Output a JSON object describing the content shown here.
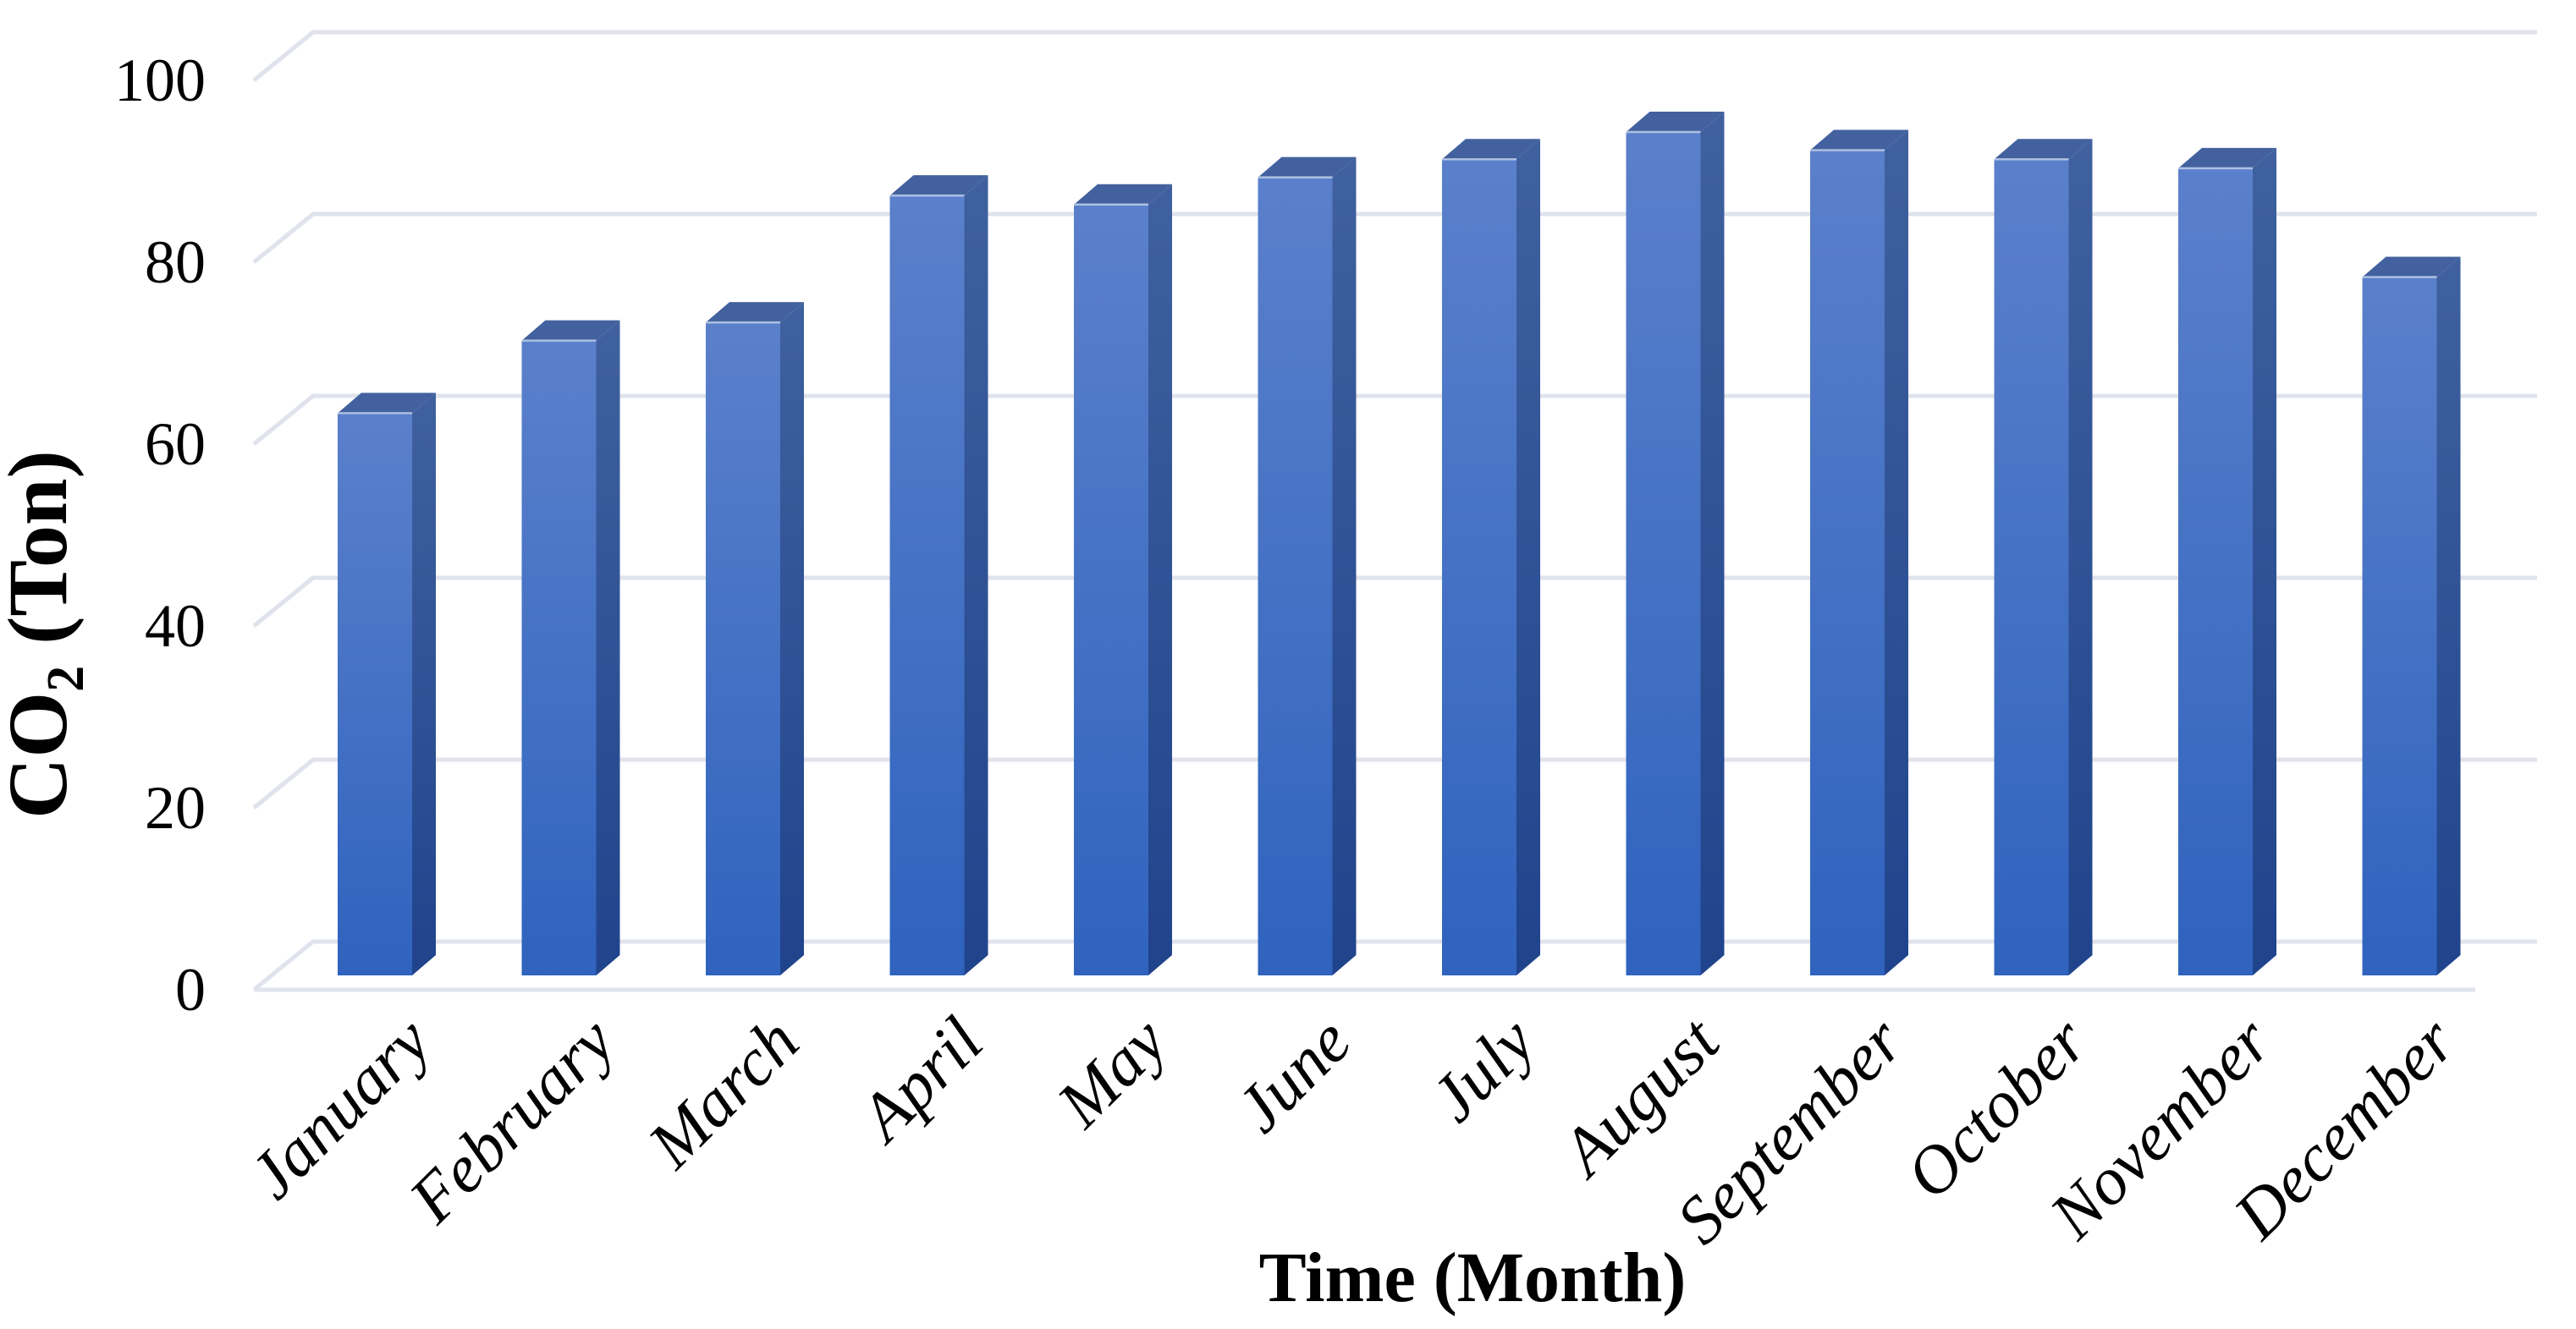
{
  "figure": {
    "background": "#ffffff",
    "description": "3D-effect blue column chart of monthly CO2 emissions"
  },
  "chart_data": {
    "type": "bar",
    "style": "3d-column",
    "title": "",
    "xlabel": "Time (Month)",
    "ylabel_plain": "CO2 (Ton)",
    "ylabel_parts": {
      "prefix": "CO",
      "sub": "2",
      "suffix": " (Ton)"
    },
    "categories": [
      "January",
      "February",
      "March",
      "April",
      "May",
      "June",
      "July",
      "August",
      "September",
      "October",
      "November",
      "December"
    ],
    "values": [
      62,
      70,
      72,
      86,
      85,
      88,
      90,
      93,
      91,
      90,
      89,
      77
    ],
    "ylim": [
      0,
      100
    ],
    "yticks": [
      0,
      20,
      40,
      60,
      80,
      100
    ],
    "grid": true,
    "legend": "none",
    "x_tick_rotation_deg": -45,
    "colors": {
      "bar_front_top": "#5b80cb",
      "bar_front_bottom": "#2f63be",
      "bar_side_top": "#40619f",
      "bar_side_bottom": "#20438c",
      "bar_top_face": "#42619e",
      "bar_top_edge_highlight": "#c3d2ec",
      "gridline": "#e0e3ec",
      "text": "#000000",
      "background": "#ffffff"
    }
  }
}
